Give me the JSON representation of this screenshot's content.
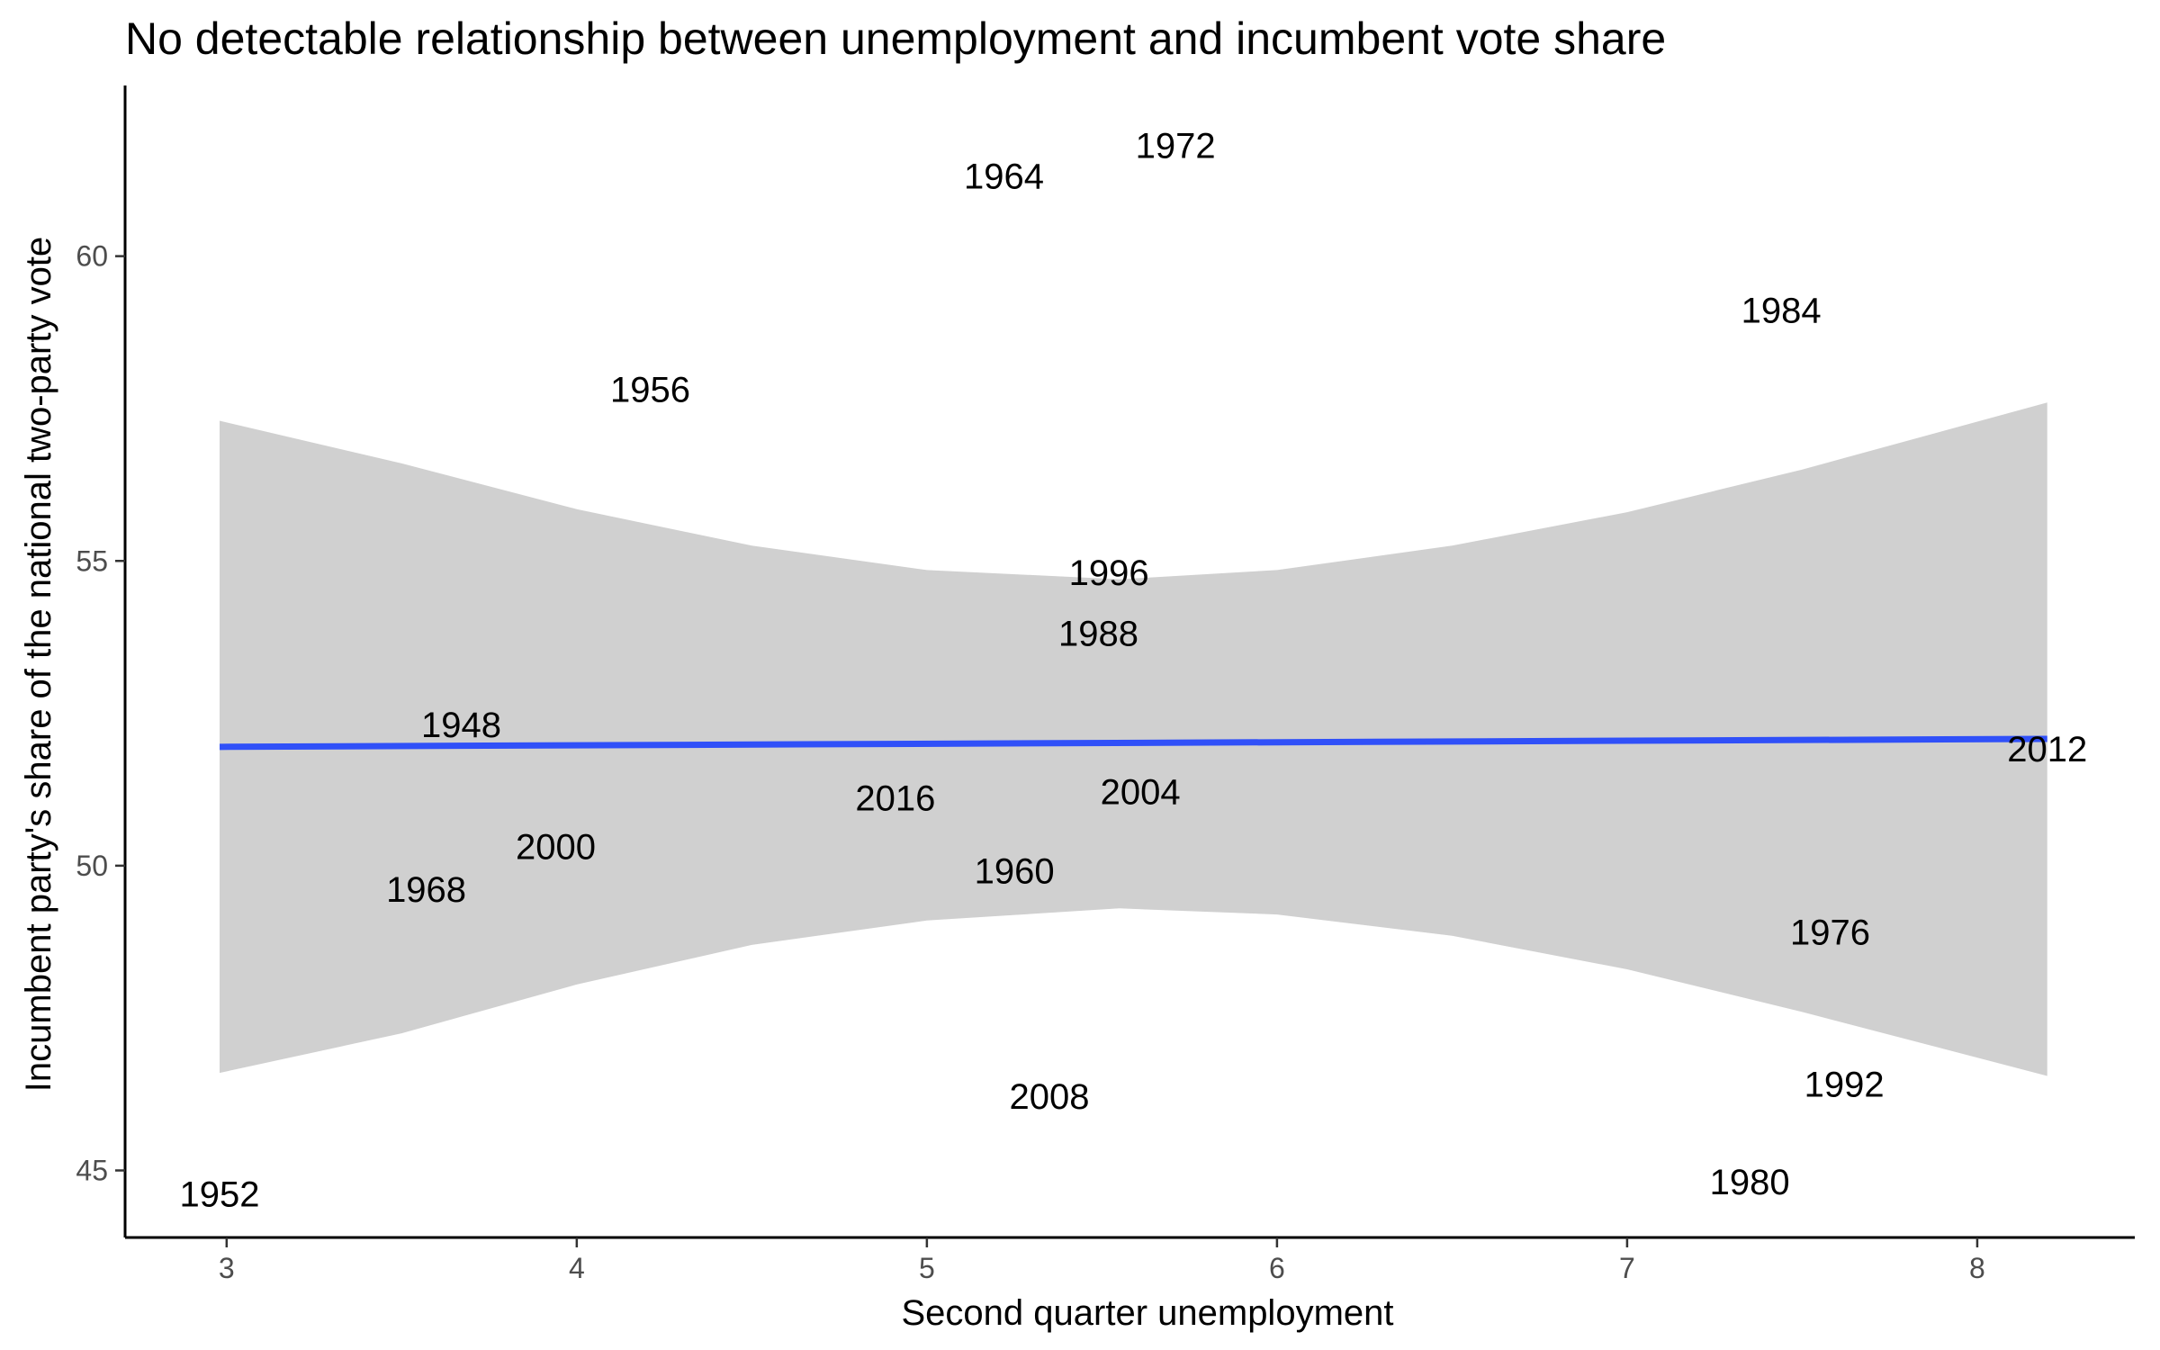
{
  "chart_data": {
    "type": "scatter",
    "title": "No detectable relationship between unemployment and incumbent vote share",
    "xlabel": "Second quarter unemployment",
    "ylabel": "Incumbent party's share of the national two-party vote",
    "xlim": [
      2.71,
      8.45
    ],
    "ylim": [
      43.9,
      62.8
    ],
    "x_ticks": [
      3,
      4,
      5,
      6,
      7,
      8
    ],
    "y_ticks": [
      45,
      50,
      55,
      60
    ],
    "grid": false,
    "legend": "none",
    "point_labels": "year text labels (points drawn as text)",
    "points": [
      {
        "label": "1948",
        "x": 3.67,
        "y": 52.3
      },
      {
        "label": "1952",
        "x": 2.98,
        "y": 44.6
      },
      {
        "label": "1956",
        "x": 4.21,
        "y": 57.8
      },
      {
        "label": "1960",
        "x": 5.25,
        "y": 49.9
      },
      {
        "label": "1964",
        "x": 5.22,
        "y": 61.3
      },
      {
        "label": "1968",
        "x": 3.57,
        "y": 49.6
      },
      {
        "label": "1972",
        "x": 5.71,
        "y": 61.8
      },
      {
        "label": "1976",
        "x": 7.58,
        "y": 48.9
      },
      {
        "label": "1980",
        "x": 7.35,
        "y": 44.8
      },
      {
        "label": "1984",
        "x": 7.44,
        "y": 59.1
      },
      {
        "label": "1988",
        "x": 5.49,
        "y": 53.8
      },
      {
        "label": "1992",
        "x": 7.62,
        "y": 46.4
      },
      {
        "label": "1996",
        "x": 5.52,
        "y": 54.8
      },
      {
        "label": "2000",
        "x": 3.94,
        "y": 50.3
      },
      {
        "label": "2004",
        "x": 5.61,
        "y": 51.2
      },
      {
        "label": "2008",
        "x": 5.35,
        "y": 46.2
      },
      {
        "label": "2012",
        "x": 8.2,
        "y": 51.9
      },
      {
        "label": "2016",
        "x": 4.91,
        "y": 51.1
      }
    ],
    "fit": {
      "method": "linear",
      "color": "#3050f8",
      "band_color": "#d0d0d0",
      "line": [
        [
          2.98,
          51.95
        ],
        [
          8.2,
          52.08
        ]
      ],
      "band": [
        {
          "x": 2.98,
          "lower": 46.6,
          "upper": 57.3
        },
        {
          "x": 3.5,
          "lower": 47.25,
          "upper": 56.6
        },
        {
          "x": 4.0,
          "lower": 48.05,
          "upper": 55.85
        },
        {
          "x": 4.5,
          "lower": 48.7,
          "upper": 55.25
        },
        {
          "x": 5.0,
          "lower": 49.1,
          "upper": 54.85
        },
        {
          "x": 5.55,
          "lower": 49.3,
          "upper": 54.7
        },
        {
          "x": 6.0,
          "lower": 49.2,
          "upper": 54.85
        },
        {
          "x": 6.5,
          "lower": 48.85,
          "upper": 55.25
        },
        {
          "x": 7.0,
          "lower": 48.3,
          "upper": 55.8
        },
        {
          "x": 7.5,
          "lower": 47.6,
          "upper": 56.5
        },
        {
          "x": 8.2,
          "lower": 46.55,
          "upper": 57.6
        }
      ]
    }
  }
}
